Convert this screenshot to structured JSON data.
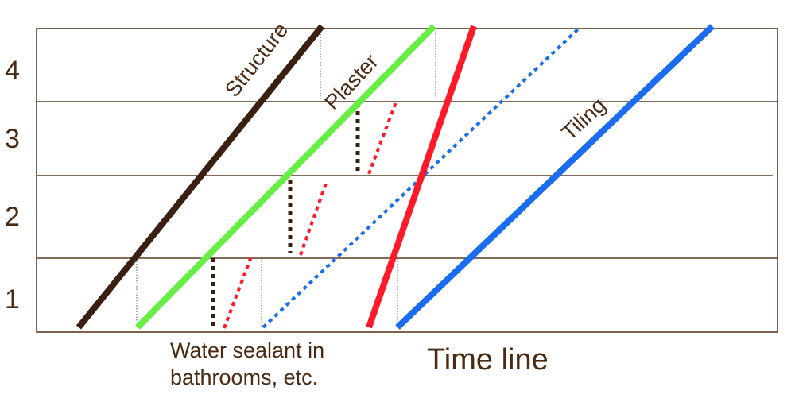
{
  "floors": [
    "1",
    "2",
    "3",
    "4"
  ],
  "labels": {
    "structure": "Structure",
    "plaster": "Plaster",
    "tiling": "Tiling",
    "water_sealant_line1": "Water sealant in",
    "water_sealant_line2": "bathrooms, etc.",
    "timeline": "Time line"
  },
  "colors": {
    "grid": "#5a3a22",
    "text": "#4a2a12",
    "structure": "#3a2010",
    "plaster": "#66ee44",
    "red_activity": "#ff1a2a",
    "blue_activity": "#1a6cf0",
    "guide": "#6a5040"
  }
}
